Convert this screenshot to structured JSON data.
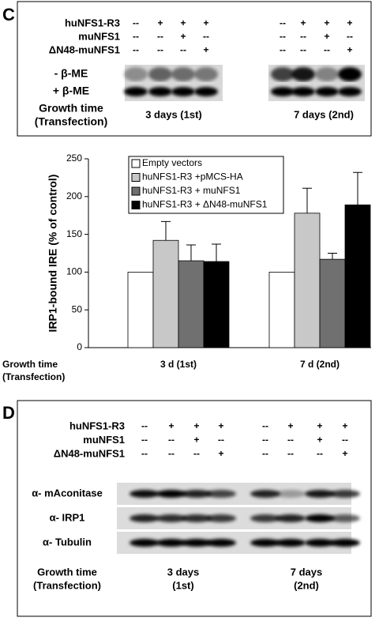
{
  "panel_c": {
    "label": "C",
    "rows": [
      {
        "name": "huNFS1-R3",
        "marks": [
          "--",
          "+",
          "+",
          "+",
          "--",
          "+",
          "+",
          "+"
        ]
      },
      {
        "name": "muNFS1",
        "marks": [
          "--",
          "--",
          "+",
          "--",
          "--",
          "--",
          "+",
          "--"
        ]
      },
      {
        "name": "ΔN48-muNFS1",
        "marks": [
          "--",
          "--",
          "--",
          "+",
          "--",
          "--",
          "--",
          "+"
        ]
      }
    ],
    "blots": [
      "- β-ME",
      "+ β-ME"
    ],
    "growth_label": [
      "Growth time",
      "(Transfection)"
    ],
    "growth": [
      "3 days (1st)",
      "7 days (2nd)"
    ]
  },
  "chart_data": {
    "type": "bar",
    "ylabel": "IRP1-bound IRE (% of control)",
    "categories": [
      "3 d (1st)",
      "7 d (2nd)"
    ],
    "row_label": [
      "Growth time",
      "(Transfection)"
    ],
    "ylim": [
      0,
      250
    ],
    "yticks": [
      0,
      50,
      100,
      150,
      200,
      250
    ],
    "series": [
      {
        "name": "Empty vectors",
        "color": "#ffffff",
        "values": [
          100,
          100
        ]
      },
      {
        "name": "huNFS1-R3 +pMCS-HA",
        "color": "#c8c8c8",
        "values": [
          142,
          178
        ],
        "errors": [
          25,
          33
        ]
      },
      {
        "name": "huNFS1-R3 + muNFS1",
        "color": "#707070",
        "values": [
          115,
          117
        ],
        "errors": [
          21,
          8
        ]
      },
      {
        "name": "huNFS1-R3 + ΔN48-muNFS1",
        "color": "#000000",
        "values": [
          114,
          189
        ],
        "errors": [
          23,
          43
        ]
      }
    ]
  },
  "panel_d": {
    "label": "D",
    "rows": [
      {
        "name": "huNFS1-R3",
        "marks": [
          "--",
          "+",
          "+",
          "+",
          "--",
          "+",
          "+",
          "+"
        ]
      },
      {
        "name": "muNFS1",
        "marks": [
          "--",
          "--",
          "+",
          "--",
          "--",
          "--",
          "+",
          "--"
        ]
      },
      {
        "name": "ΔN48-muNFS1",
        "marks": [
          "--",
          "--",
          "--",
          "+",
          "--",
          "--",
          "--",
          "+"
        ]
      }
    ],
    "blots": [
      "α- mAconitase",
      "α- IRP1",
      "α- Tubulin"
    ],
    "growth_label": [
      "Growth time",
      "(Transfection)"
    ],
    "growth": [
      [
        "3 days",
        "(1st)"
      ],
      [
        "7 days",
        "(2nd)"
      ]
    ]
  }
}
